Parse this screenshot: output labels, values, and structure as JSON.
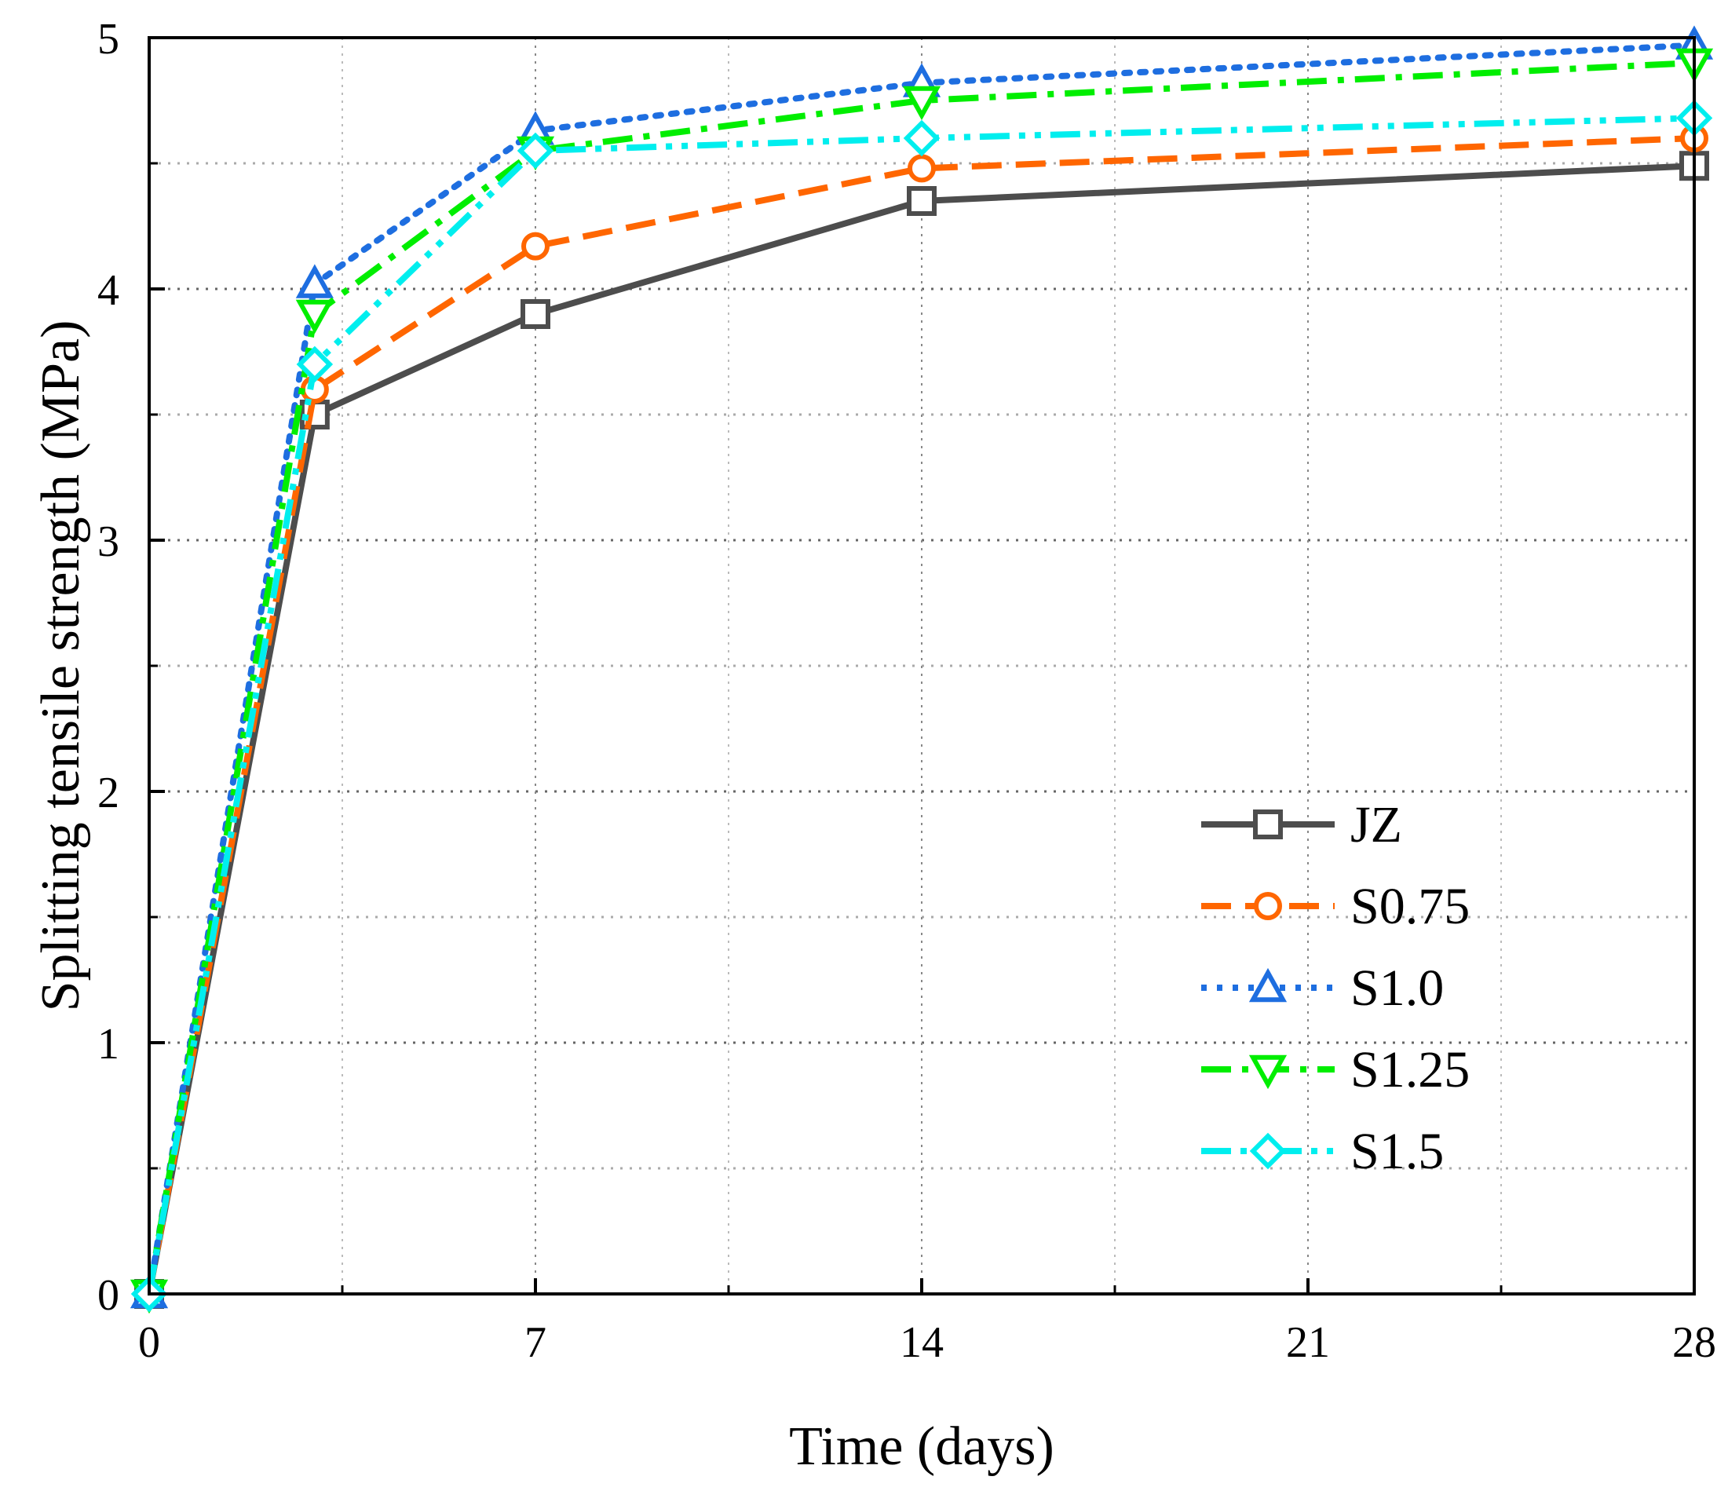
{
  "chart_data": {
    "type": "line",
    "xlabel": "Time (days)",
    "ylabel": "Splitting tensile strength (MPa)",
    "xlim": [
      0,
      28
    ],
    "ylim": [
      0,
      5
    ],
    "xticks": [
      0,
      7,
      14,
      21,
      28
    ],
    "xtick_labels": [
      "0",
      "7",
      "14",
      "21",
      "28"
    ],
    "yticks": [
      0,
      1,
      2,
      3,
      4,
      5
    ],
    "ytick_labels": [
      "0",
      "1",
      "2",
      "3",
      "4",
      "5"
    ],
    "grid": true,
    "legend_position": "lower-right",
    "x": [
      0,
      3,
      7,
      14,
      28
    ],
    "series": [
      {
        "name": "JZ",
        "values": [
          0,
          3.5,
          3.9,
          4.35,
          4.49
        ],
        "color": "#4d4d4d",
        "marker": "square",
        "dash": "solid"
      },
      {
        "name": "S0.75",
        "values": [
          0,
          3.6,
          4.17,
          4.48,
          4.6
        ],
        "color": "#ff6600",
        "marker": "circle",
        "dash": "dash"
      },
      {
        "name": "S1.0",
        "values": [
          0,
          4.02,
          4.63,
          4.82,
          4.97
        ],
        "color": "#1e6ee0",
        "marker": "triangle",
        "dash": "dot"
      },
      {
        "name": "S1.25",
        "values": [
          0,
          3.9,
          4.55,
          4.75,
          4.9
        ],
        "color": "#00ee00",
        "marker": "triangle-down",
        "dash": "dashdot"
      },
      {
        "name": "S1.5",
        "values": [
          0,
          3.7,
          4.55,
          4.6,
          4.68
        ],
        "color": "#00eeee",
        "marker": "diamond",
        "dash": "dashdotdot"
      }
    ]
  }
}
